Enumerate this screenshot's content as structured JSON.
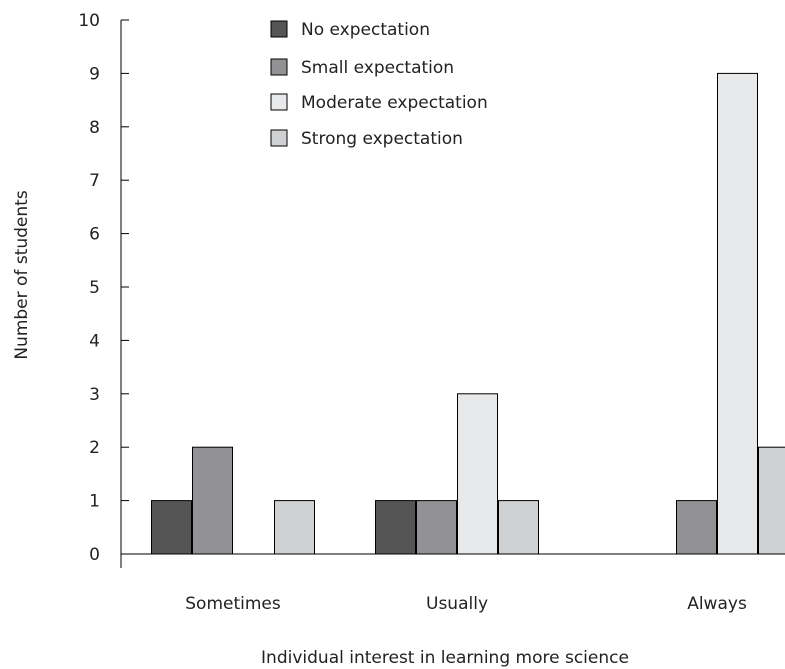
{
  "chart_data": {
    "type": "bar",
    "xlabel": "Individual interest in learning more science",
    "ylabel": "Number of students",
    "ylim": [
      0,
      10
    ],
    "yticks": [
      0,
      1,
      2,
      3,
      4,
      5,
      6,
      7,
      8,
      9,
      10
    ],
    "grid": false,
    "legend_position": "top",
    "categories": [
      "Sometimes",
      "Usually",
      "Always"
    ],
    "series": [
      {
        "name": "No expectation",
        "color": "#555555",
        "values": [
          1,
          1,
          0
        ]
      },
      {
        "name": "Small expectation",
        "color": "#929294",
        "values": [
          2,
          1,
          1
        ]
      },
      {
        "name": "Moderate expectation",
        "color": "#e8e9eb",
        "values": [
          0,
          3,
          9
        ]
      },
      {
        "name": "Strong expectation",
        "color": "#d0d1d3",
        "values": [
          1,
          1,
          2
        ]
      }
    ]
  }
}
